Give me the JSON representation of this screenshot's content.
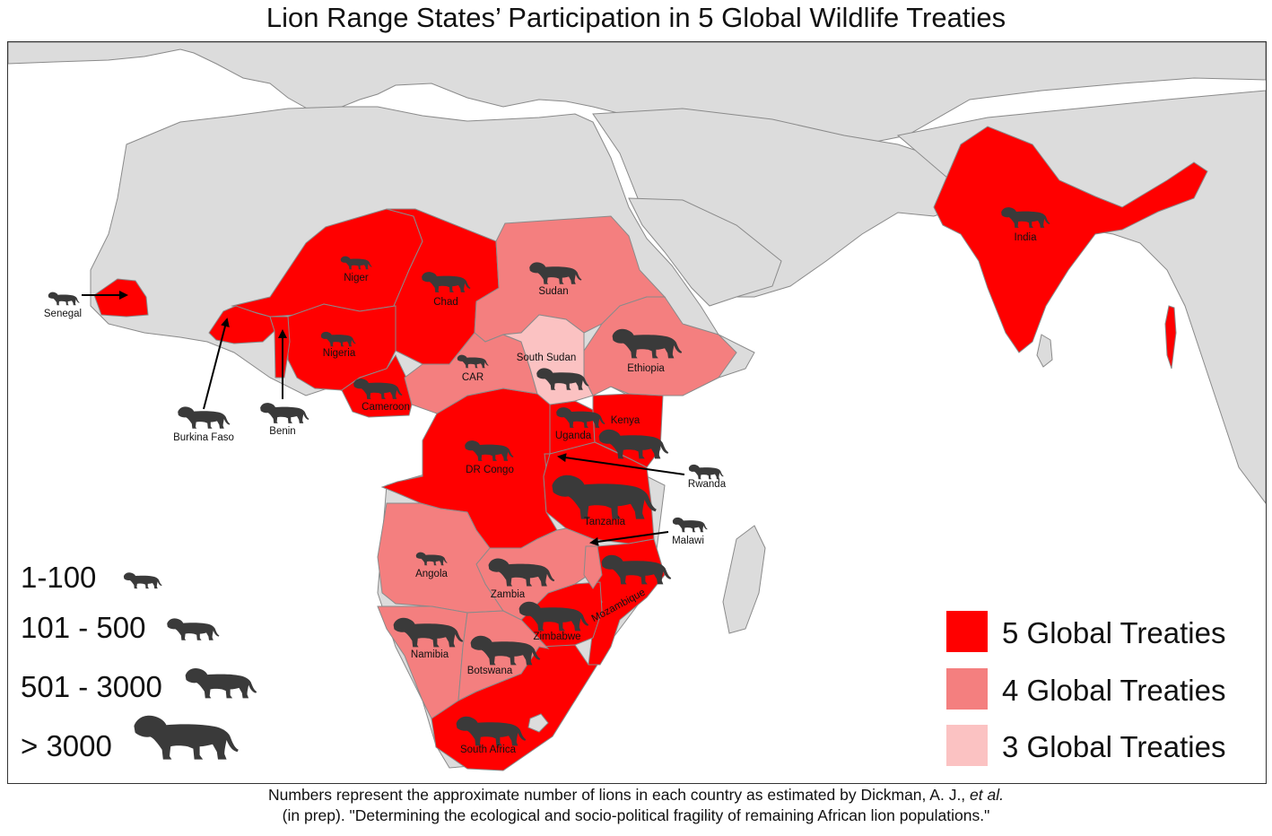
{
  "title": "Lion Range States’ Participation in 5 Global Wildlife Treaties",
  "colors": {
    "ocean": "#ffffff",
    "land": "#dcdcdc",
    "land_border": "#8a8a8a",
    "five_treaties": "#ff0000",
    "four_treaties": "#f47f7f",
    "three_treaties": "#fbc2c2",
    "lion": "#3a3a3a",
    "arrow": "#000000"
  },
  "countries": {
    "senegal": "Senegal",
    "niger": "Niger",
    "chad": "Chad",
    "sudan": "Sudan",
    "nigeria": "Nigeria",
    "car": "CAR",
    "south_sudan": "South Sudan",
    "ethiopia": "Ethiopia",
    "cameroon": "Cameroon",
    "burkina_faso": "Burkina Faso",
    "benin": "Benin",
    "kenya": "Kenya",
    "uganda": "Uganda",
    "dr_congo": "DR Congo",
    "rwanda": "Rwanda",
    "tanzania": "Tanzania",
    "malawi": "Malawi",
    "angola": "Angola",
    "zambia": "Zambia",
    "mozambique": "Mozambique",
    "zimbabwe": "Zimbabwe",
    "namibia": "Namibia",
    "botswana": "Botswana",
    "south_africa": "South Africa",
    "india": "India"
  },
  "size_legend": [
    "1-100",
    "101 - 500",
    "501 - 3000",
    "> 3000"
  ],
  "treaty_legend": [
    "5 Global Treaties",
    "4 Global Treaties",
    "3 Global Treaties"
  ],
  "caption": {
    "line1_a": "Numbers represent the approximate number of lions in each country as estimated by Dickman, A. J., ",
    "line1_italic": "et al.",
    "line2": "(in prep). \"Determining the ecological and socio-political fragility of remaining African lion populations.\""
  }
}
